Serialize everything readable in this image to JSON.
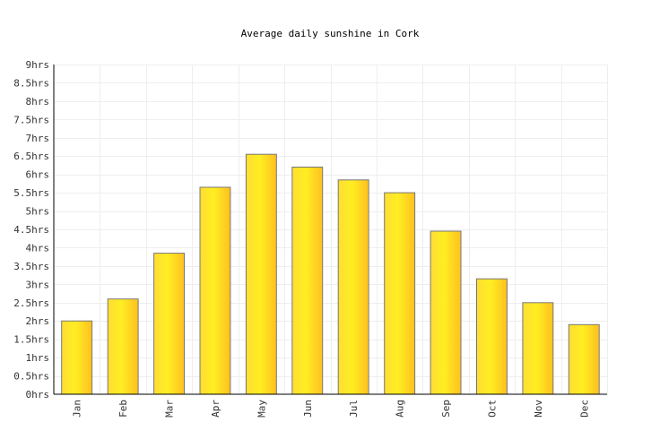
{
  "chart_data": {
    "type": "bar",
    "title": "Average daily sunshine in Cork",
    "xlabel": "",
    "ylabel": "",
    "categories": [
      "Jan",
      "Feb",
      "Mar",
      "Apr",
      "May",
      "Jun",
      "Jul",
      "Aug",
      "Sep",
      "Oct",
      "Nov",
      "Dec"
    ],
    "values": [
      2.0,
      2.6,
      3.85,
      5.65,
      6.55,
      6.2,
      5.85,
      5.5,
      4.45,
      3.15,
      2.5,
      1.9
    ],
    "ylim": [
      0,
      9
    ],
    "yticks": [
      0,
      0.5,
      1,
      1.5,
      2,
      2.5,
      3,
      3.5,
      4,
      4.5,
      5,
      5.5,
      6,
      6.5,
      7,
      7.5,
      8,
      8.5,
      9
    ],
    "ytick_labels": [
      "0hrs",
      "0.5hrs",
      "1hrs",
      "1.5hrs",
      "2hrs",
      "2.5hrs",
      "3hrs",
      "3.5hrs",
      "4hrs",
      "4.5hrs",
      "5hrs",
      "5.5hrs",
      "6hrs",
      "6.5hrs",
      "7hrs",
      "7.5hrs",
      "8hrs",
      "8.5hrs",
      "9hrs"
    ],
    "grid": true,
    "colors": {
      "bar_left": "#ffdd33",
      "bar_mid": "#ffee22",
      "bar_right": "#ffc020",
      "bar_stroke": "#777777",
      "grid": "#eeeeee"
    }
  }
}
